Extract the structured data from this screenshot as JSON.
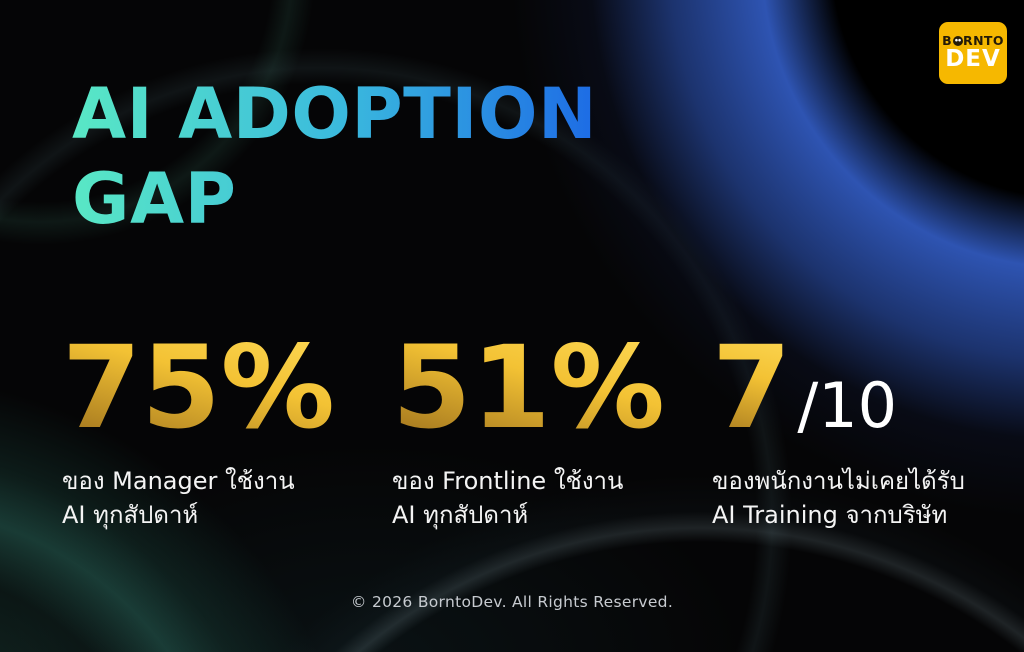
{
  "title": {
    "line1": "AI ADOPTION",
    "line2": "GAP"
  },
  "logo": {
    "text_pre_o": "B",
    "text_post_o": "RNTO",
    "text_bottom": "DEV"
  },
  "stats": [
    {
      "value": "75%",
      "suffix": "",
      "caption1": "ของ Manager ใช้งาน",
      "caption2": "AI ทุกสัปดาห์"
    },
    {
      "value": "51%",
      "suffix": "",
      "caption1": "ของ Frontline ใช้งาน",
      "caption2": "AI ทุกสัปดาห์"
    },
    {
      "value": "7",
      "suffix": "/10",
      "caption1": "ของพนักงานไม่เคยได้รับ",
      "caption2": "AI Training จากบริษัท"
    }
  ],
  "footer": {
    "copyright": "© 2026 BorntoDev. All Rights Reserved."
  },
  "colors": {
    "background": "#050506",
    "title_gradient_start": "#59E8C5",
    "title_gradient_end": "#1D6BE5",
    "stat_gold_light": "#FFDD5C",
    "stat_gold_dark": "#93671A",
    "blue_glow": "#2E54B2",
    "teal_glow": "#2A685C",
    "logo_bg": "#F6B800",
    "text_white": "#F4F4F4"
  }
}
